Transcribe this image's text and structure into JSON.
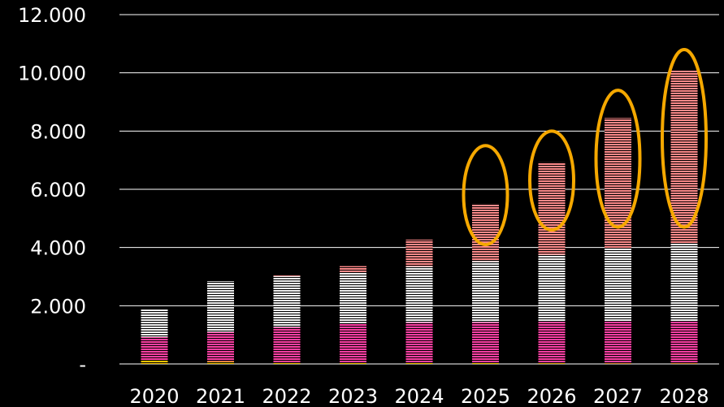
{
  "chart_data": {
    "type": "bar",
    "stacked": true,
    "background": "#000000",
    "categories": [
      "2020",
      "2021",
      "2022",
      "2023",
      "2024",
      "2025",
      "2026",
      "2027",
      "2028"
    ],
    "series": [
      {
        "values": [
          120,
          90,
          60,
          50,
          40,
          30,
          25,
          20,
          20
        ],
        "color": "#f5c200",
        "pattern": "hstripe"
      },
      {
        "values": [
          800,
          1000,
          1200,
          1350,
          1380,
          1400,
          1420,
          1430,
          1430
        ],
        "color": "#ff3fa4",
        "pattern": "hstripe"
      },
      {
        "values": [
          970,
          1750,
          1760,
          1750,
          1930,
          2100,
          2310,
          2520,
          2690
        ],
        "color": "#f2f2f2",
        "pattern": "hstripe"
      },
      {
        "values": [
          0,
          0,
          30,
          210,
          920,
          1970,
          3170,
          4480,
          5950
        ],
        "color": "#ff8a8a",
        "pattern": "hstripe"
      }
    ],
    "yticks": [
      "-",
      "2.000",
      "4.000",
      "6.000",
      "8.000",
      "10.000",
      "12.000"
    ],
    "ylim": [
      0,
      12000
    ],
    "grid": true,
    "gridColor": "#ffffff",
    "highlight": {
      "color": "#f5a800",
      "categories": [
        "2025",
        "2026",
        "2027",
        "2028"
      ],
      "ranges": [
        [
          4100,
          7500
        ],
        [
          4600,
          8000
        ],
        [
          4700,
          9400
        ],
        [
          4700,
          10800
        ]
      ]
    }
  }
}
